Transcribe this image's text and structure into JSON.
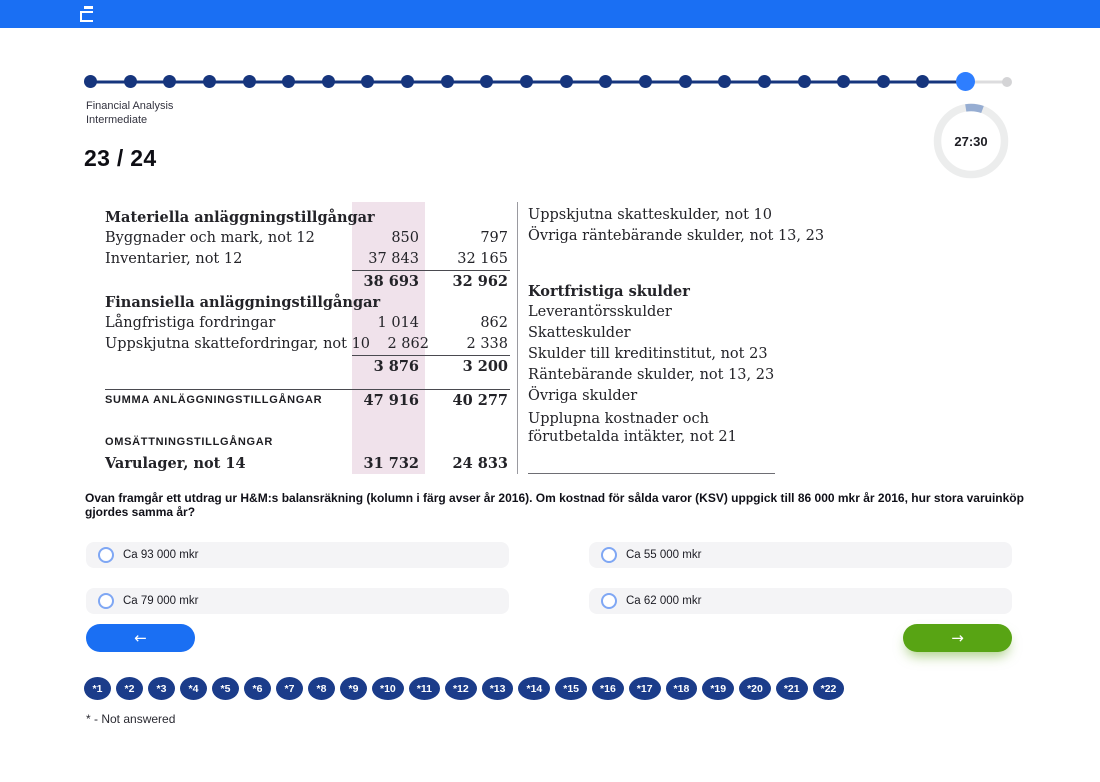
{
  "quiz": {
    "course": "Financial Analysis",
    "level": "Intermediate",
    "progress_label": "23 / 24",
    "timer": "27:30",
    "total_steps": 24,
    "current_step": 23
  },
  "balance_sheet": {
    "left_rows": [
      {
        "type": "header",
        "label": "Materiella anläggningstillgångar"
      },
      {
        "type": "item",
        "label": "Byggnader och mark, not 12",
        "highlighted": "850",
        "other": "797"
      },
      {
        "type": "item",
        "label": "Inventarier, not 12",
        "highlighted": "37 843",
        "other": "32 165"
      },
      {
        "type": "numrule"
      },
      {
        "type": "subtotal",
        "label": "",
        "highlighted": "38 693",
        "other": "32 962"
      },
      {
        "type": "header",
        "label": "Finansiella anläggningstillgångar"
      },
      {
        "type": "item",
        "label": "Långfristiga fordringar",
        "highlighted": "1 014",
        "other": "862"
      },
      {
        "type": "item",
        "label": "Uppskjutna skattefordringar, not 10",
        "highlighted": "2 862",
        "other": "2 338"
      },
      {
        "type": "numrule"
      },
      {
        "type": "subtotal",
        "label": "",
        "highlighted": "3 876",
        "other": "3 200"
      },
      {
        "type": "fullrule"
      },
      {
        "type": "summary",
        "label": "SUMMA ANLÄGGNINGSTILLGÅNGAR",
        "highlighted": "47 916",
        "other": "40 277"
      },
      {
        "type": "gap"
      },
      {
        "type": "capsheader",
        "label": "OMSÄTTNINGSTILLGÅNGAR"
      },
      {
        "type": "item",
        "bold": true,
        "label": "Varulager, not 14",
        "highlighted": "31 732",
        "other": "24 833"
      }
    ],
    "right_rows": [
      {
        "type": "item",
        "label": "Uppskjutna skatteskulder, not 10"
      },
      {
        "type": "item",
        "label": "Övriga räntebärande skulder, not 13, 23"
      },
      {
        "type": "gap"
      },
      {
        "type": "header",
        "label": "Kortfristiga skulder"
      },
      {
        "type": "item",
        "label": "Leverantörsskulder"
      },
      {
        "type": "item",
        "label": "Skatteskulder"
      },
      {
        "type": "item",
        "label": "Skulder till kreditinstitut, not 23"
      },
      {
        "type": "item",
        "label": "Räntebärande skulder, not 13, 23"
      },
      {
        "type": "item",
        "label": "Övriga skulder"
      },
      {
        "type": "item",
        "label": "Upplupna kostnader och förutbetalda intäkter, not 21",
        "wrap": true
      },
      {
        "type": "rule"
      }
    ]
  },
  "question": {
    "text": "Ovan framgår ett utdrag ur H&M:s balansräkning (kolumn i färg avser år 2016). Om kostnad för sålda varor (KSV) uppgick till 86 000 mkr år 2016, hur stora varuinköp gjordes samma år?"
  },
  "options": [
    {
      "label": "Ca 93 000 mkr"
    },
    {
      "label": "Ca 55 000 mkr"
    },
    {
      "label": "Ca 79 000 mkr"
    },
    {
      "label": "Ca 62 000 mkr"
    }
  ],
  "navigation": {
    "back_icon": "←",
    "next_icon": "→"
  },
  "question_buttons": [
    "*1",
    "*2",
    "*3",
    "*4",
    "*5",
    "*6",
    "*7",
    "*8",
    "*9",
    "*10",
    "*11",
    "*12",
    "*13",
    "*14",
    "*15",
    "*16",
    "*17",
    "*18",
    "*19",
    "*20",
    "*21",
    "*22"
  ],
  "footnote": "* - Not answered",
  "colors": {
    "primary_blue": "#1a6ff3",
    "navy": "#1b3c8a",
    "active_blue": "#2e7eff",
    "green": "#58a414",
    "highlight_pink": "#f0e2eb",
    "timer_arc": "#96add2"
  }
}
